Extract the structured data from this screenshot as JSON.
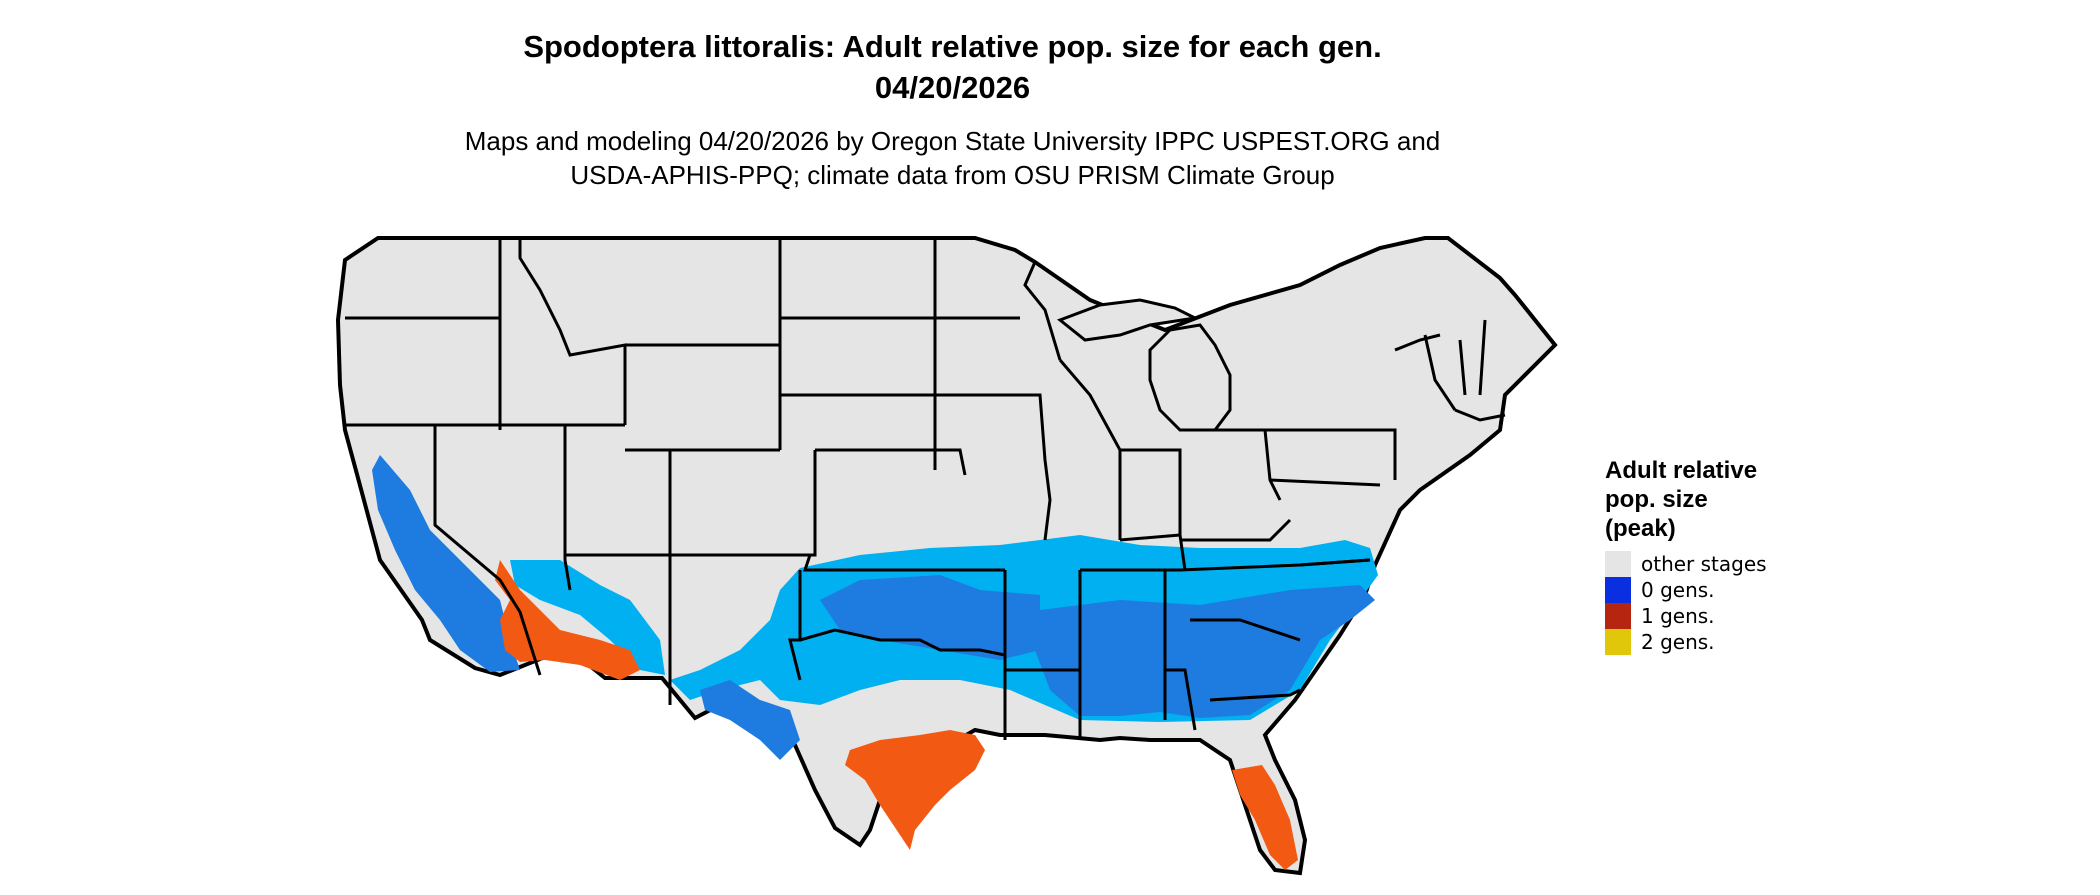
{
  "title_line1": "Spodoptera littoralis: Adult relative pop. size for each gen.",
  "title_line2": "04/20/2026",
  "subtitle_line1": "Maps and modeling 04/20/2026 by Oregon State University IPPC USPEST.ORG and",
  "subtitle_line2": "USDA-APHIS-PPQ; climate data from OSU PRISM Climate Group",
  "legend": {
    "title_line1": "Adult relative",
    "title_line2": "pop. size",
    "title_line3": "(peak)",
    "items": [
      {
        "label": "other stages",
        "color": "#e5e5e5"
      },
      {
        "label": "0 gens.",
        "color": "#0a2fe0"
      },
      {
        "label": "1 gens.",
        "color": "#b5250f"
      },
      {
        "label": "2 gens.",
        "color": "#e0c70a"
      }
    ]
  },
  "map_colors": {
    "land": "#e5e5e5",
    "border": "#000000",
    "light_blue": "#00b0f0",
    "mid_blue": "#1e7be0",
    "orange": "#f25a14"
  }
}
